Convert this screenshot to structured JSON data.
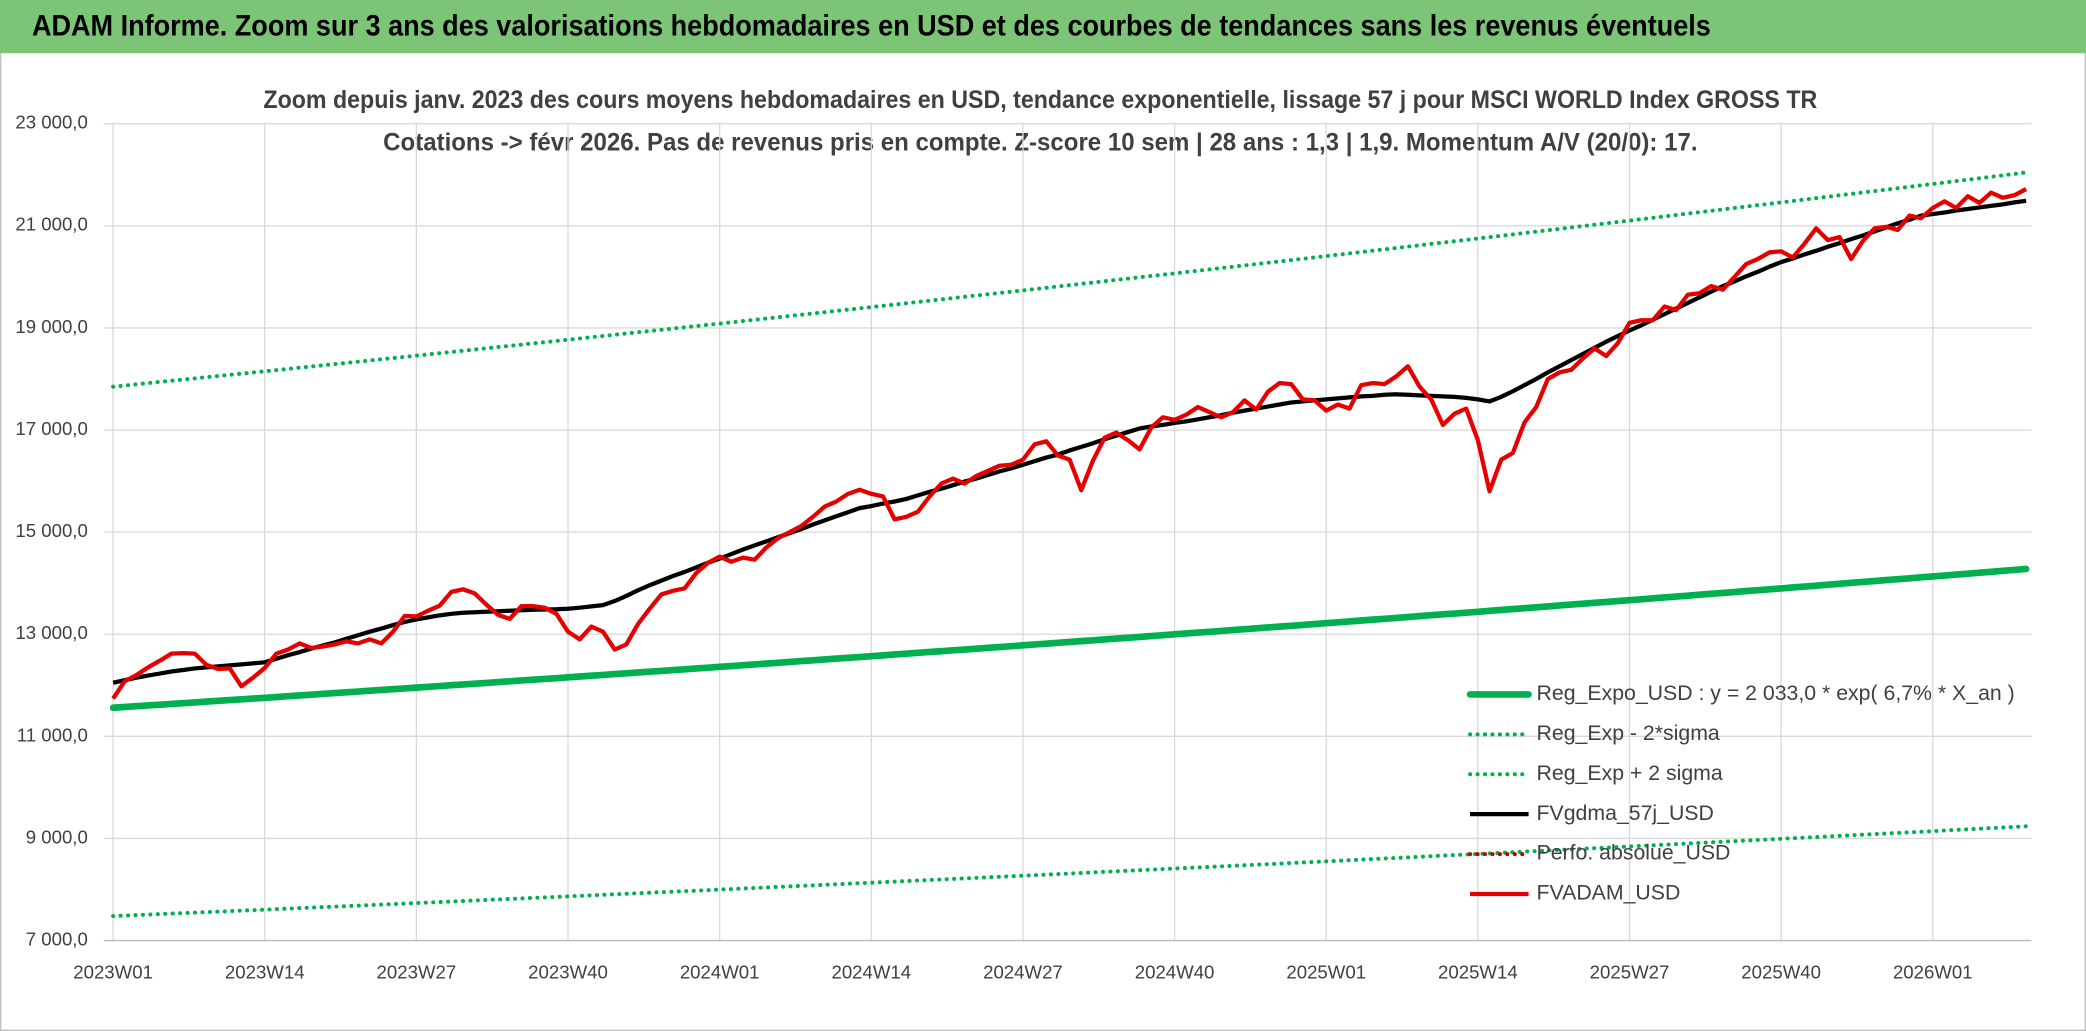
{
  "banner": {
    "title": "ADAM Informe. Zoom sur 3 ans des valorisations hebdomadaires en USD et des courbes de tendances sans les revenus éventuels"
  },
  "chart_data": {
    "type": "line",
    "title": "Zoom depuis janv. 2023 des cours moyens hebdomadaires en USD, tendance exponentielle, lissage 57 j pour MSCI WORLD Index GROSS TR",
    "subtitle": "Cotations -> févr 2026. Pas de revenus pris en compte. Z-score 10 sem | 28 ans : 1,3 | 1,9. Momentum A/V (20/0): 17.",
    "categories": [
      "2023W01",
      null,
      null,
      null,
      null,
      null,
      null,
      null,
      null,
      null,
      null,
      null,
      null,
      "2023W14",
      null,
      null,
      null,
      null,
      null,
      null,
      null,
      null,
      null,
      null,
      null,
      null,
      "2023W27",
      null,
      null,
      null,
      null,
      null,
      null,
      null,
      null,
      null,
      null,
      null,
      null,
      "2023W40",
      null,
      null,
      null,
      null,
      null,
      null,
      null,
      null,
      null,
      null,
      null,
      null,
      "2024W01",
      null,
      null,
      null,
      null,
      null,
      null,
      null,
      null,
      null,
      null,
      null,
      null,
      "2024W14",
      null,
      null,
      null,
      null,
      null,
      null,
      null,
      null,
      null,
      null,
      null,
      null,
      "2024W27",
      null,
      null,
      null,
      null,
      null,
      null,
      null,
      null,
      null,
      null,
      null,
      null,
      "2024W40",
      null,
      null,
      null,
      null,
      null,
      null,
      null,
      null,
      null,
      null,
      null,
      null,
      "2025W01",
      null,
      null,
      null,
      null,
      null,
      null,
      null,
      null,
      null,
      null,
      null,
      null,
      "2025W14",
      null,
      null,
      null,
      null,
      null,
      null,
      null,
      null,
      null,
      null,
      null,
      null,
      "2025W27",
      null,
      null,
      null,
      null,
      null,
      null,
      null,
      null,
      null,
      null,
      null,
      null,
      "2025W40",
      null,
      null,
      null,
      null,
      null,
      null,
      null,
      null,
      null,
      null,
      null,
      null,
      "2026W01",
      null,
      null,
      null,
      null,
      null,
      null,
      null,
      null
    ],
    "ylim": [
      7000,
      23000
    ],
    "yticks": [
      {
        "value": 7000,
        "label": "7 000,0"
      },
      {
        "value": 9000,
        "label": "9 000,0"
      },
      {
        "value": 11000,
        "label": "11 000,0"
      },
      {
        "value": 13000,
        "label": "13 000,0"
      },
      {
        "value": 15000,
        "label": "15 000,0"
      },
      {
        "value": 17000,
        "label": "17 000,0"
      },
      {
        "value": 19000,
        "label": "19 000,0"
      },
      {
        "value": 21000,
        "label": "21 000,0"
      },
      {
        "value": 23000,
        "label": "23 000,0"
      }
    ],
    "grid": true,
    "legend": "bottom-right",
    "series": [
      {
        "name": "Reg_Expo_USD : y = 2 033,0 * exp( 6,7% *  X_an )",
        "color": "#00b050",
        "style": "thick",
        "values": [
          11560,
          11575,
          11590,
          11605,
          11620,
          11635,
          11650,
          11665,
          11680,
          11695,
          11710,
          11725,
          11740,
          11755,
          11770,
          11786,
          11801,
          11816,
          11832,
          11847,
          11862,
          11878,
          11893,
          11908,
          11924,
          11939,
          11954,
          11970,
          11985,
          12001,
          12016,
          12032,
          12047,
          12063,
          12078,
          12094,
          12109,
          12125,
          12140,
          12156,
          12172,
          12188,
          12203,
          12219,
          12235,
          12251,
          12266,
          12282,
          12298,
          12314,
          12329,
          12345,
          12361,
          12377,
          12393,
          12409,
          12425,
          12441,
          12458,
          12474,
          12490,
          12506,
          12522,
          12538,
          12554,
          12570,
          12586,
          12603,
          12619,
          12635,
          12652,
          12668,
          12684,
          12700,
          12717,
          12733,
          12749,
          12766,
          12782,
          12799,
          12815,
          12832,
          12848,
          12865,
          12882,
          12898,
          12915,
          12931,
          12948,
          12965,
          12981,
          12998,
          13015,
          13032,
          13048,
          13065,
          13082,
          13099,
          13116,
          13132,
          13149,
          13166,
          13183,
          13200,
          13217,
          13234,
          13251,
          13269,
          13286,
          13303,
          13320,
          13337,
          13355,
          13372,
          13389,
          13406,
          13423,
          13440,
          13458,
          13475,
          13493,
          13510,
          13528,
          13545,
          13563,
          13580,
          13598,
          13615,
          13633,
          13650,
          13667,
          13685,
          13703,
          13720,
          13738,
          13756,
          13774,
          13792,
          13809,
          13827,
          13845,
          13863,
          13881,
          13898,
          13916,
          13934,
          13952,
          13970,
          13988,
          14006,
          14024,
          14042,
          14060,
          14078,
          14096,
          14114,
          14132,
          14150,
          14169,
          14187,
          14205,
          14223,
          14242,
          14260,
          14278
        ]
      },
      {
        "name": "Reg_Exp - 2*sigma",
        "color": "#00b050",
        "style": "dotted",
        "values": [
          7479,
          7489,
          7498,
          7508,
          7518,
          7528,
          7537,
          7547,
          7557,
          7566,
          7576,
          7586,
          7595,
          7605,
          7615,
          7625,
          7635,
          7645,
          7655,
          7664,
          7674,
          7684,
          7694,
          7704,
          7714,
          7724,
          7734,
          7744,
          7754,
          7764,
          7774,
          7785,
          7795,
          7805,
          7815,
          7825,
          7835,
          7845,
          7855,
          7865,
          7875,
          7885,
          7896,
          7906,
          7916,
          7926,
          7936,
          7947,
          7957,
          7967,
          7977,
          7987,
          7998,
          8008,
          8019,
          8029,
          8040,
          8050,
          8060,
          8071,
          8081,
          8092,
          8102,
          8112,
          8123,
          8133,
          8144,
          8154,
          8165,
          8175,
          8186,
          8196,
          8207,
          8217,
          8228,
          8238,
          8249,
          8259,
          8270,
          8281,
          8292,
          8302,
          8313,
          8324,
          8335,
          8346,
          8356,
          8367,
          8378,
          8389,
          8400,
          8410,
          8421,
          8432,
          8442,
          8453,
          8464,
          8475,
          8486,
          8496,
          8507,
          8518,
          8529,
          8540,
          8551,
          8562,
          8573,
          8585,
          8596,
          8607,
          8618,
          8629,
          8641,
          8652,
          8663,
          8674,
          8685,
          8696,
          8707,
          8719,
          8730,
          8741,
          8753,
          8764,
          8775,
          8786,
          8798,
          8809,
          8820,
          8832,
          8843,
          8855,
          8866,
          8878,
          8889,
          8901,
          8912,
          8924,
          8935,
          8947,
          8958,
          8970,
          8981,
          8992,
          9004,
          9015,
          9027,
          9038,
          9050,
          9062,
          9073,
          9085,
          9096,
          9108,
          9120,
          9131,
          9143,
          9155,
          9167,
          9179,
          9191,
          9203,
          9214,
          9226,
          9238
        ]
      },
      {
        "name": "Reg_Exp + 2 sigma",
        "color": "#00b050",
        "style": "dotted",
        "values": [
          17849,
          17872,
          17895,
          17919,
          17942,
          17965,
          17988,
          18011,
          18035,
          18058,
          18081,
          18104,
          18127,
          18150,
          18174,
          18197,
          18221,
          18244,
          18268,
          18292,
          18315,
          18339,
          18362,
          18386,
          18410,
          18433,
          18457,
          18481,
          18505,
          18529,
          18553,
          18577,
          18601,
          18625,
          18649,
          18673,
          18697,
          18721,
          18745,
          18769,
          18793,
          18818,
          18842,
          18866,
          18891,
          18915,
          18939,
          18963,
          18988,
          19012,
          19036,
          19061,
          19085,
          19110,
          19135,
          19159,
          19184,
          19209,
          19234,
          19259,
          19283,
          19308,
          19333,
          19358,
          19383,
          19408,
          19433,
          19458,
          19484,
          19509,
          19534,
          19559,
          19584,
          19610,
          19635,
          19660,
          19685,
          19710,
          19735,
          19761,
          19786,
          19812,
          19838,
          19864,
          19889,
          19915,
          19941,
          19966,
          19992,
          20018,
          20043,
          20069,
          20095,
          20121,
          20147,
          20173,
          20199,
          20225,
          20251,
          20277,
          20303,
          20329,
          20355,
          20381,
          20407,
          20434,
          20460,
          20487,
          20513,
          20540,
          20566,
          20593,
          20619,
          20646,
          20672,
          20699,
          20725,
          20751,
          20778,
          20805,
          20832,
          20859,
          20886,
          20913,
          20940,
          20967,
          20994,
          21021,
          21048,
          21075,
          21102,
          21130,
          21157,
          21185,
          21212,
          21240,
          21267,
          21295,
          21322,
          21350,
          21377,
          21405,
          21432,
          21459,
          21487,
          21515,
          21542,
          21570,
          21598,
          21626,
          21654,
          21681,
          21709,
          21737,
          21765,
          21793,
          21820,
          21848,
          21876,
          21904,
          21932,
          21961,
          21989,
          22017,
          22045
        ]
      },
      {
        "name": "FVgdma_57j_USD",
        "color": "#000000",
        "style": "solid",
        "values": [
          12050,
          12100,
          12150,
          12190,
          12230,
          12270,
          12300,
          12330,
          12350,
          12370,
          12390,
          12410,
          12430,
          12450,
          12520,
          12590,
          12650,
          12720,
          12780,
          12840,
          12910,
          12980,
          13050,
          13110,
          13180,
          13240,
          13290,
          13330,
          13370,
          13400,
          13420,
          13430,
          13440,
          13450,
          13460,
          13470,
          13480,
          13485,
          13490,
          13500,
          13520,
          13545,
          13570,
          13650,
          13750,
          13860,
          13960,
          14050,
          14140,
          14220,
          14310,
          14400,
          14480,
          14570,
          14660,
          14740,
          14820,
          14900,
          14980,
          15060,
          15150,
          15230,
          15310,
          15390,
          15470,
          15510,
          15560,
          15600,
          15650,
          15720,
          15790,
          15850,
          15920,
          15990,
          16050,
          16120,
          16190,
          16250,
          16320,
          16390,
          16460,
          16520,
          16600,
          16670,
          16740,
          16820,
          16890,
          16960,
          17030,
          17070,
          17100,
          17140,
          17170,
          17210,
          17250,
          17290,
          17340,
          17380,
          17420,
          17460,
          17500,
          17540,
          17560,
          17580,
          17600,
          17620,
          17640,
          17660,
          17670,
          17690,
          17700,
          17690,
          17680,
          17670,
          17660,
          17650,
          17630,
          17600,
          17560,
          17650,
          17760,
          17880,
          18000,
          18130,
          18250,
          18370,
          18490,
          18610,
          18730,
          18840,
          18950,
          19050,
          19160,
          19270,
          19380,
          19490,
          19600,
          19710,
          19820,
          19910,
          20010,
          20100,
          20200,
          20290,
          20360,
          20440,
          20510,
          20590,
          20660,
          20740,
          20810,
          20890,
          20970,
          21050,
          21120,
          21200,
          21230,
          21260,
          21300,
          21330,
          21360,
          21390,
          21420,
          21460,
          21490
        ]
      },
      {
        "name": "Perfo. absolue_USD",
        "color": "#c00000",
        "style": "dotted"
      },
      {
        "name": "FVADAM_USD",
        "color": "#e60000",
        "style": "solid",
        "values": [
          11740,
          12080,
          12200,
          12350,
          12480,
          12620,
          12630,
          12620,
          12400,
          12320,
          12330,
          11980,
          12150,
          12340,
          12620,
          12700,
          12820,
          12730,
          12760,
          12800,
          12860,
          12820,
          12900,
          12820,
          13050,
          13360,
          13350,
          13460,
          13560,
          13830,
          13880,
          13800,
          13580,
          13380,
          13300,
          13550,
          13550,
          13520,
          13400,
          13050,
          12900,
          13150,
          13050,
          12700,
          12800,
          13200,
          13500,
          13780,
          13850,
          13900,
          14200,
          14400,
          14520,
          14420,
          14500,
          14460,
          14700,
          14880,
          15000,
          15120,
          15300,
          15500,
          15600,
          15750,
          15830,
          15750,
          15700,
          15250,
          15300,
          15400,
          15700,
          15950,
          16050,
          15950,
          16100,
          16200,
          16300,
          16320,
          16420,
          16720,
          16780,
          16500,
          16420,
          15820,
          16400,
          16850,
          16950,
          16800,
          16620,
          17050,
          17250,
          17200,
          17300,
          17450,
          17350,
          17250,
          17350,
          17580,
          17400,
          17750,
          17920,
          17900,
          17600,
          17580,
          17380,
          17500,
          17420,
          17880,
          17920,
          17900,
          18050,
          18250,
          17850,
          17600,
          17100,
          17320,
          17420,
          16800,
          15800,
          16420,
          16550,
          17150,
          17450,
          18000,
          18130,
          18180,
          18400,
          18600,
          18450,
          18700,
          19100,
          19150,
          19150,
          19420,
          19350,
          19650,
          19680,
          19820,
          19750,
          20000,
          20250,
          20350,
          20480,
          20500,
          20380,
          20650,
          20950,
          20720,
          20780,
          20350,
          20700,
          20950,
          20980,
          20920,
          21200,
          21150,
          21350,
          21480,
          21350,
          21580,
          21450,
          21650,
          21550,
          21600,
          21720
        ]
      }
    ]
  }
}
